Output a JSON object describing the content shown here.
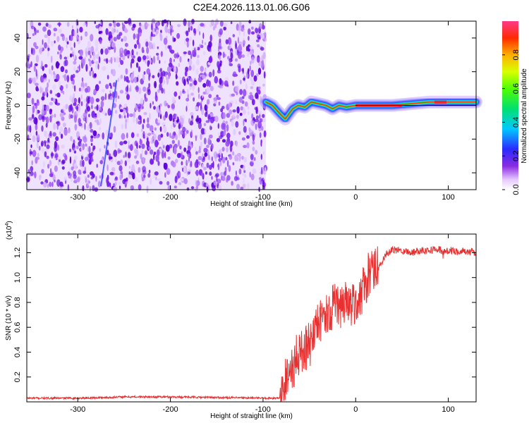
{
  "title": "C2E4.2026.113.01.06.G06",
  "chart_data": [
    {
      "type": "heatmap",
      "title": "C2E4.2026.113.01.06.G06",
      "xlabel": "Height of straight line (km)",
      "ylabel": "Frequency (Hz)",
      "xlim": [
        -355,
        130
      ],
      "ylim": [
        -50,
        50
      ],
      "x_ticks": [
        -300,
        -200,
        -100,
        0,
        100
      ],
      "y_ticks": [
        -40,
        -20,
        0,
        20,
        40
      ],
      "noise_region": {
        "x": [
          -355,
          -97
        ],
        "y": [
          -50,
          50
        ],
        "description_color": "purple"
      },
      "signal_track": {
        "x": [
          -97,
          -90,
          -85,
          -80,
          -76,
          -72,
          -68,
          -62,
          -55,
          -48,
          -40,
          -32,
          -25,
          -18,
          -10,
          0,
          20,
          40,
          60,
          80,
          100,
          130
        ],
        "y": [
          2,
          0,
          -3,
          -6,
          -8,
          -5,
          -2,
          0,
          -1,
          2,
          1,
          0,
          -2,
          0,
          -1,
          0,
          0,
          0,
          1,
          2,
          2,
          2
        ]
      },
      "colorbar": {
        "label": "Normalized spectral amplitude",
        "range": [
          0,
          1
        ],
        "ticks": [
          0.0,
          0.2,
          0.4,
          0.6,
          0.8
        ]
      }
    },
    {
      "type": "line",
      "xlabel": "Height of straight line (km)",
      "ylabel": "SNR (10 * v/v)",
      "y_multiplier": "(x10^4)",
      "y_multiplier_base": "(x10",
      "y_multiplier_exp": "4",
      "xlim": [
        -355,
        130
      ],
      "ylim": [
        0,
        1.35
      ],
      "x_ticks": [
        -300,
        -200,
        -100,
        0,
        100
      ],
      "y_ticks": [
        0.2,
        0.4,
        0.6,
        0.8,
        1.0,
        1.2
      ],
      "color": "#e83030",
      "series": [
        {
          "x": [
            -355,
            -300,
            -270,
            -250,
            -200,
            -150,
            -100,
            -82,
            -78,
            -75,
            -70,
            -65,
            -60,
            -55,
            -50,
            -45,
            -40,
            -35,
            -30,
            -25,
            -20,
            -15,
            -10,
            -5,
            0,
            5,
            10,
            15,
            20,
            25,
            30,
            35,
            40,
            50,
            60,
            70,
            80,
            90,
            95,
            100,
            110,
            120,
            130
          ],
          "y": [
            0.03,
            0.03,
            0.035,
            0.04,
            0.04,
            0.035,
            0.03,
            0.03,
            0.1,
            0.2,
            0.25,
            0.32,
            0.4,
            0.45,
            0.5,
            0.52,
            0.6,
            0.7,
            0.72,
            0.75,
            0.78,
            0.8,
            0.8,
            0.8,
            0.78,
            0.85,
            0.95,
            1.0,
            1.05,
            1.1,
            1.15,
            1.2,
            1.22,
            1.22,
            1.2,
            1.22,
            1.22,
            1.23,
            1.2,
            1.22,
            1.21,
            1.21,
            1.2
          ]
        }
      ]
    }
  ]
}
